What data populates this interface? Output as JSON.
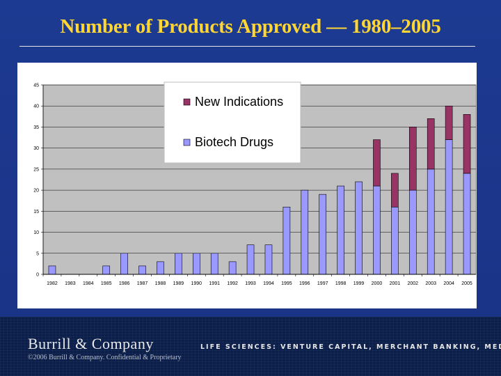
{
  "slide": {
    "title": "Number of Products Approved — 1980–2005"
  },
  "footer": {
    "company": "Burrill & Company",
    "confidential": "©2006 Burrill & Company. Confidential & Proprietary",
    "tagline": "LIFE SCIENCES: VENTURE CAPITAL, MERCHANT BANKING, MEDIA"
  },
  "colors": {
    "new_indications": "#993366",
    "biotech_drugs": "#9999ff",
    "plot_background": "#c0c0c0",
    "title": "#ffd633"
  },
  "chart_data": {
    "type": "bar",
    "stacked": true,
    "title": "",
    "xlabel": "",
    "ylabel": "",
    "ylim": [
      0,
      45
    ],
    "yticks": [
      0,
      5,
      10,
      15,
      20,
      25,
      30,
      35,
      40,
      45
    ],
    "grid": true,
    "legend_position": "top-left",
    "categories": [
      "1982",
      "1983",
      "1984",
      "1985",
      "1986",
      "1987",
      "1988",
      "1989",
      "1990",
      "1991",
      "1992",
      "1993",
      "1994",
      "1995",
      "1996",
      "1997",
      "1998",
      "1999",
      "2000",
      "2001",
      "2002",
      "2003",
      "2004",
      "2005"
    ],
    "series": [
      {
        "name": "Biotech Drugs",
        "color": "#9999ff",
        "values": [
          2,
          0,
          0,
          2,
          5,
          2,
          3,
          5,
          5,
          5,
          3,
          7,
          7,
          16,
          20,
          19,
          21,
          22,
          21,
          16,
          20,
          25,
          32,
          24
        ]
      },
      {
        "name": "New Indications",
        "color": "#993366",
        "values": [
          0,
          0,
          0,
          0,
          0,
          0,
          0,
          0,
          0,
          0,
          0,
          0,
          0,
          0,
          0,
          0,
          0,
          0,
          11,
          8,
          15,
          12,
          8,
          14
        ]
      }
    ]
  }
}
